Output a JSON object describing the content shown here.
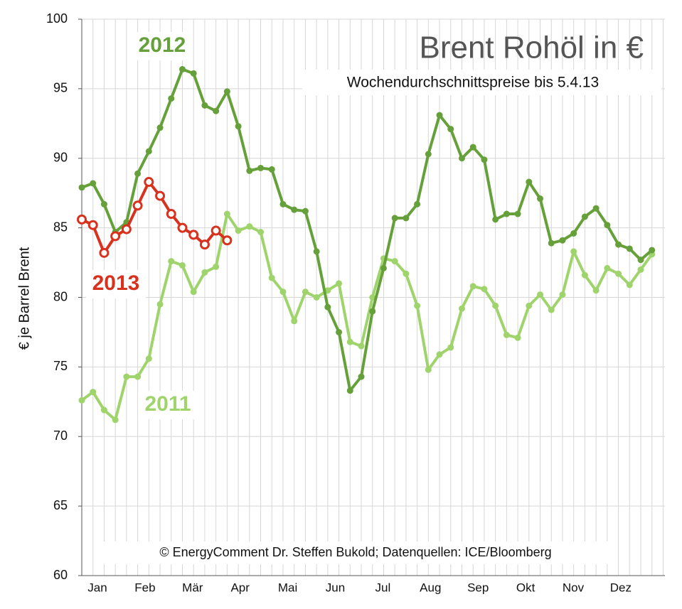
{
  "chart_data": {
    "type": "line",
    "title": "Brent Rohöl in €",
    "subtitle": "Wochendurchschnittspreise bis 5.4.13",
    "y_label": "€ je Barrel Brent",
    "source": "© EnergyComment Dr. Steffen Bukold; Datenquellen: ICE/Bloomberg",
    "x_labels": [
      "Jan",
      "Feb",
      "Mär",
      "Apr",
      "Mai",
      "Jun",
      "Jul",
      "Aug",
      "Sep",
      "Okt",
      "Nov",
      "Dez"
    ],
    "ylim": [
      60,
      100
    ],
    "yticks": [
      60,
      65,
      70,
      75,
      80,
      85,
      90,
      95,
      100
    ],
    "grid": true,
    "series": [
      {
        "name": "2011",
        "color": "#9fd46c",
        "marker": "filled",
        "values": [
          72.6,
          73.2,
          71.9,
          71.2,
          74.3,
          74.3,
          75.6,
          79.5,
          82.6,
          82.3,
          80.4,
          81.8,
          82.2,
          86.0,
          84.8,
          85.1,
          84.7,
          81.4,
          80.4,
          78.3,
          80.4,
          80.0,
          80.5,
          81.0,
          76.8,
          76.5,
          80.0,
          82.8,
          82.6,
          81.7,
          79.4,
          74.8,
          75.9,
          76.4,
          79.2,
          80.8,
          80.6,
          79.4,
          77.3,
          77.1,
          79.4,
          80.2,
          79.1,
          80.2,
          83.3,
          81.6,
          80.5,
          82.1,
          81.7,
          80.9,
          82.0,
          83.1
        ]
      },
      {
        "name": "2012",
        "color": "#66a03a",
        "marker": "filled",
        "values": [
          87.9,
          88.2,
          86.7,
          84.7,
          85.4,
          88.9,
          90.5,
          92.2,
          94.3,
          96.4,
          96.1,
          93.8,
          93.4,
          94.8,
          92.3,
          89.1,
          89.3,
          89.2,
          86.7,
          86.3,
          86.2,
          83.3,
          79.3,
          77.5,
          73.3,
          74.3,
          79.0,
          82.1,
          85.7,
          85.7,
          86.7,
          90.3,
          93.1,
          92.1,
          90.0,
          90.8,
          89.9,
          85.6,
          86.0,
          86.0,
          88.3,
          87.1,
          83.9,
          84.1,
          84.6,
          85.8,
          86.4,
          85.2,
          83.8,
          83.5,
          82.7,
          83.4
        ]
      },
      {
        "name": "2013",
        "color": "#d8321e",
        "marker": "open",
        "values": [
          85.6,
          85.2,
          83.2,
          84.4,
          84.9,
          86.6,
          88.3,
          87.3,
          86.0,
          85.0,
          84.5,
          83.8,
          84.8,
          84.1,
          null,
          null,
          null,
          null,
          null,
          null,
          null,
          null,
          null,
          null,
          null,
          null,
          null,
          null,
          null,
          null,
          null,
          null,
          null,
          null,
          null,
          null,
          null,
          null,
          null,
          null,
          null,
          null,
          null,
          null,
          null,
          null,
          null,
          null,
          null,
          null,
          null,
          null
        ]
      }
    ]
  }
}
